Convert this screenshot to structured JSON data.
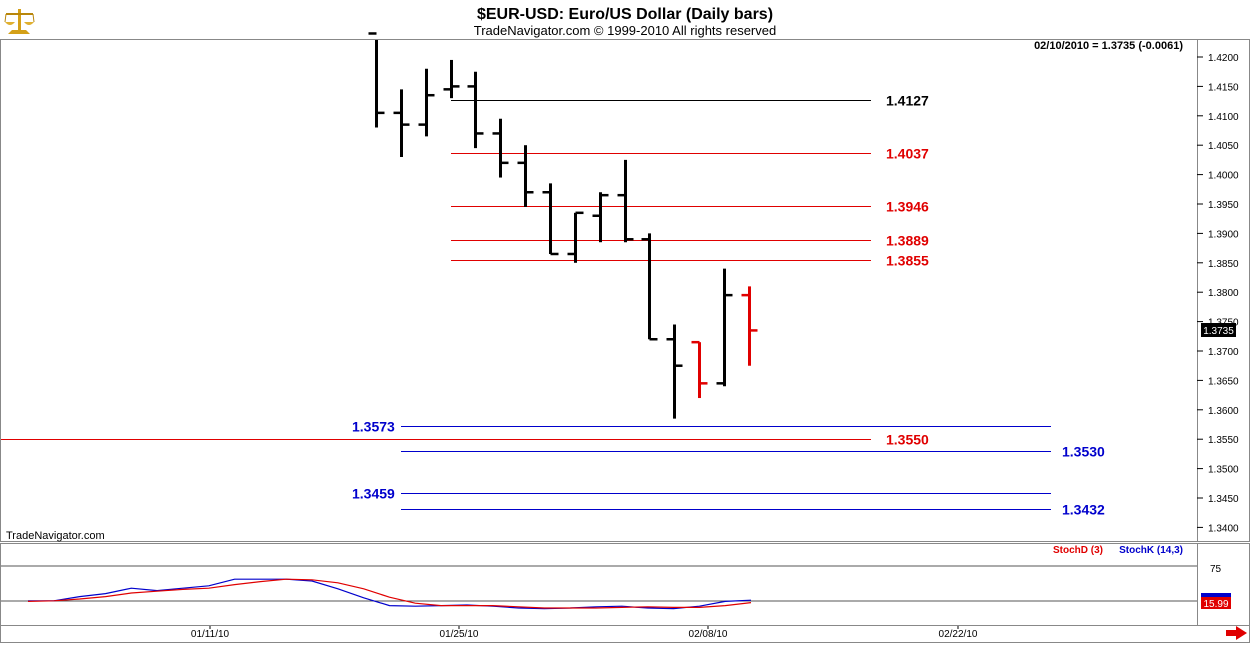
{
  "chart_data": [
    {
      "type": "ohlc",
      "title": "$EUR-USD:  Euro/US Dollar  (Daily bars)",
      "subtitle": "TradeNavigator.com © 1999-2010 All rights reserved",
      "watermark": "TradeNavigator.com",
      "last_quote": "02/10/2010 = 1.3735 (-0.0061)",
      "last_value_badge": "1.3735",
      "ylim": [
        1.3375,
        1.4235
      ],
      "yticks": [
        "1.4200",
        "1.4150",
        "1.4100",
        "1.4050",
        "1.4000",
        "1.3950",
        "1.3900",
        "1.3850",
        "1.3800",
        "1.3750",
        "1.3700",
        "1.3650",
        "1.3600",
        "1.3550",
        "1.3500",
        "1.3450",
        "1.3400"
      ],
      "bars": [
        {
          "o": 1.424,
          "h": 1.424,
          "l": 1.408,
          "c": 1.4105,
          "color": "black"
        },
        {
          "o": 1.4105,
          "h": 1.4145,
          "l": 1.403,
          "c": 1.4085,
          "color": "black"
        },
        {
          "o": 1.4085,
          "h": 1.418,
          "l": 1.4065,
          "c": 1.4135,
          "color": "black"
        },
        {
          "o": 1.4145,
          "h": 1.4195,
          "l": 1.413,
          "c": 1.415,
          "color": "black"
        },
        {
          "o": 1.415,
          "h": 1.4175,
          "l": 1.4045,
          "c": 1.407,
          "color": "black"
        },
        {
          "o": 1.407,
          "h": 1.4095,
          "l": 1.3995,
          "c": 1.402,
          "color": "black"
        },
        {
          "o": 1.402,
          "h": 1.405,
          "l": 1.3945,
          "c": 1.397,
          "color": "black"
        },
        {
          "o": 1.397,
          "h": 1.3985,
          "l": 1.3865,
          "c": 1.3865,
          "color": "black"
        },
        {
          "o": 1.3865,
          "h": 1.3935,
          "l": 1.385,
          "c": 1.3935,
          "color": "black"
        },
        {
          "o": 1.393,
          "h": 1.397,
          "l": 1.3885,
          "c": 1.3965,
          "color": "black"
        },
        {
          "o": 1.3965,
          "h": 1.4025,
          "l": 1.3885,
          "c": 1.389,
          "color": "black"
        },
        {
          "o": 1.389,
          "h": 1.39,
          "l": 1.372,
          "c": 1.372,
          "color": "black"
        },
        {
          "o": 1.372,
          "h": 1.3745,
          "l": 1.3585,
          "c": 1.3675,
          "color": "black"
        },
        {
          "o": 1.3715,
          "h": 1.3715,
          "l": 1.362,
          "c": 1.3645,
          "color": "red"
        },
        {
          "o": 1.3645,
          "h": 1.384,
          "l": 1.364,
          "c": 1.3795,
          "color": "black"
        },
        {
          "o": 1.3795,
          "h": 1.381,
          "l": 1.3675,
          "c": 1.3735,
          "color": "red"
        }
      ],
      "levels": [
        {
          "value": 1.4127,
          "label": "1.4127",
          "color": "#000000",
          "start": "03",
          "end": "20",
          "label_at": "right"
        },
        {
          "value": 1.4037,
          "label": "1.4037",
          "color": "#e00000",
          "start": "03",
          "end": "20",
          "label_at": "right"
        },
        {
          "value": 1.3946,
          "label": "1.3946",
          "color": "#e00000",
          "start": "03",
          "end": "20",
          "label_at": "right"
        },
        {
          "value": 1.3889,
          "label": "1.3889",
          "color": "#e00000",
          "start": "03",
          "end": "20",
          "label_at": "right"
        },
        {
          "value": 1.3855,
          "label": "1.3855",
          "color": "#e00000",
          "start": "03",
          "end": "20",
          "label_at": "right"
        },
        {
          "value": 1.3573,
          "label": "1.3573",
          "color": "#0000cc",
          "start": "01",
          "end": "27",
          "label_at": "left"
        },
        {
          "value": 1.355,
          "label": "1.3550",
          "color": "#e00000",
          "start": "00",
          "end": "20",
          "label_at": "right"
        },
        {
          "value": 1.353,
          "label": "1.3530",
          "color": "#0000cc",
          "start": "01",
          "end": "27",
          "label_at": "right"
        },
        {
          "value": 1.3459,
          "label": "1.3459",
          "color": "#0000cc",
          "start": "01",
          "end": "27",
          "label_at": "left"
        },
        {
          "value": 1.3432,
          "label": "1.3432",
          "color": "#0000cc",
          "start": "01",
          "end": "27",
          "label_at": "right"
        }
      ],
      "x_ticks": [
        "01/11/10",
        "01/25/10",
        "02/08/10",
        "02/22/10"
      ]
    },
    {
      "type": "line",
      "indicator": "Stochastic",
      "legend": [
        "StochD (3)",
        "StochK (14,3)"
      ],
      "ylim": [
        0,
        100
      ],
      "ytick_label": "75",
      "badge_value": "15.99",
      "series": [
        {
          "name": "StochK (14,3)",
          "color": "#0000cc",
          "values": [
            17,
            17,
            24,
            29,
            38,
            34,
            38,
            42,
            53,
            53,
            53,
            50,
            37,
            22,
            9,
            8,
            9,
            10,
            8,
            5,
            4,
            5,
            7,
            8,
            5,
            4,
            8,
            16,
            18
          ]
        },
        {
          "name": "StochD (3)",
          "color": "#e00000",
          "values": [
            16,
            17,
            20,
            24,
            30,
            33,
            36,
            38,
            44,
            49,
            53,
            52,
            47,
            37,
            23,
            13,
            9,
            9,
            9,
            7,
            5,
            5,
            5,
            6,
            7,
            6,
            6,
            9,
            14
          ]
        }
      ]
    }
  ]
}
